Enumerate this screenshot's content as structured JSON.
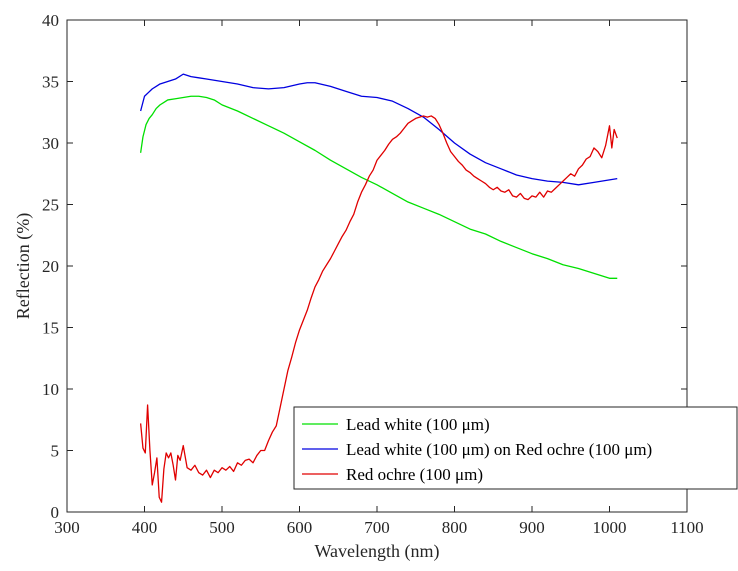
{
  "chart_data": {
    "type": "line",
    "title": "",
    "xlabel": "Wavelength (nm)",
    "ylabel": "Reflection (%)",
    "xlim": [
      300,
      1100
    ],
    "ylim": [
      0,
      40
    ],
    "xticks": [
      300,
      400,
      500,
      600,
      700,
      800,
      900,
      1000,
      1100
    ],
    "yticks": [
      0,
      5,
      10,
      15,
      20,
      25,
      30,
      35,
      40
    ],
    "grid": false,
    "legend_position": "bottom-right",
    "series": [
      {
        "name": "Lead white (100 μm)",
        "color": "#00e000",
        "x": [
          395,
          398,
          402,
          406,
          410,
          415,
          420,
          425,
          430,
          440,
          450,
          460,
          470,
          480,
          490,
          500,
          520,
          540,
          560,
          580,
          600,
          620,
          640,
          660,
          680,
          700,
          720,
          740,
          760,
          780,
          800,
          820,
          840,
          860,
          880,
          900,
          920,
          940,
          960,
          980,
          1000,
          1010
        ],
        "y": [
          29.2,
          30.5,
          31.5,
          32.0,
          32.3,
          32.8,
          33.1,
          33.3,
          33.5,
          33.6,
          33.7,
          33.8,
          33.8,
          33.7,
          33.5,
          33.1,
          32.6,
          32.0,
          31.4,
          30.8,
          30.1,
          29.4,
          28.6,
          27.9,
          27.2,
          26.6,
          25.9,
          25.2,
          24.7,
          24.2,
          23.6,
          23.0,
          22.6,
          22.0,
          21.5,
          21.0,
          20.6,
          20.1,
          19.8,
          19.4,
          19.0,
          19.0
        ]
      },
      {
        "name": "Lead white (100 μm) on Red ochre (100 μm)",
        "color": "#0000e0",
        "x": [
          395,
          400,
          405,
          410,
          415,
          420,
          430,
          440,
          450,
          460,
          470,
          480,
          500,
          520,
          540,
          560,
          580,
          600,
          610,
          620,
          640,
          660,
          680,
          700,
          720,
          740,
          760,
          780,
          800,
          820,
          840,
          860,
          880,
          900,
          920,
          940,
          960,
          980,
          1000,
          1010
        ],
        "y": [
          32.6,
          33.8,
          34.1,
          34.4,
          34.6,
          34.8,
          35.0,
          35.2,
          35.6,
          35.4,
          35.3,
          35.2,
          35.0,
          34.8,
          34.5,
          34.4,
          34.5,
          34.8,
          34.9,
          34.9,
          34.6,
          34.2,
          33.8,
          33.7,
          33.4,
          32.8,
          32.1,
          31.1,
          30.0,
          29.1,
          28.4,
          27.9,
          27.4,
          27.1,
          26.9,
          26.8,
          26.6,
          26.8,
          27.0,
          27.1
        ]
      },
      {
        "name": "Red ochre (100 μm)",
        "color": "#e00000",
        "x": [
          395,
          398,
          401,
          404,
          407,
          410,
          413,
          416,
          419,
          422,
          425,
          428,
          431,
          434,
          437,
          440,
          443,
          446,
          450,
          455,
          460,
          465,
          470,
          475,
          480,
          485,
          490,
          495,
          500,
          505,
          510,
          515,
          520,
          525,
          530,
          535,
          540,
          545,
          550,
          555,
          560,
          565,
          570,
          575,
          580,
          585,
          590,
          595,
          600,
          605,
          610,
          615,
          620,
          625,
          630,
          635,
          640,
          645,
          650,
          655,
          660,
          665,
          670,
          675,
          680,
          685,
          690,
          695,
          700,
          705,
          710,
          715,
          720,
          725,
          730,
          735,
          740,
          745,
          750,
          755,
          760,
          765,
          770,
          775,
          780,
          785,
          790,
          795,
          800,
          805,
          810,
          815,
          820,
          825,
          830,
          835,
          840,
          845,
          850,
          855,
          860,
          865,
          870,
          875,
          880,
          885,
          890,
          895,
          900,
          905,
          910,
          915,
          920,
          925,
          930,
          935,
          940,
          945,
          950,
          955,
          960,
          965,
          970,
          975,
          980,
          985,
          990,
          995,
          1000,
          1003,
          1006,
          1010
        ],
        "y": [
          7.2,
          5.2,
          4.8,
          8.7,
          5.0,
          2.2,
          3.2,
          4.4,
          1.2,
          0.8,
          3.5,
          4.8,
          4.4,
          4.8,
          3.8,
          2.6,
          4.6,
          4.2,
          5.4,
          3.6,
          3.4,
          3.8,
          3.2,
          3.0,
          3.4,
          2.8,
          3.4,
          3.2,
          3.6,
          3.4,
          3.7,
          3.3,
          4.0,
          3.8,
          4.2,
          4.3,
          4.0,
          4.6,
          5.0,
          5.0,
          5.8,
          6.5,
          7.0,
          8.5,
          10.0,
          11.5,
          12.6,
          13.8,
          14.8,
          15.6,
          16.4,
          17.4,
          18.3,
          18.9,
          19.6,
          20.1,
          20.6,
          21.2,
          21.8,
          22.4,
          22.9,
          23.6,
          24.2,
          25.2,
          26.0,
          26.6,
          27.3,
          27.8,
          28.6,
          29.0,
          29.4,
          29.9,
          30.3,
          30.5,
          30.8,
          31.2,
          31.6,
          31.8,
          32.0,
          32.1,
          32.2,
          32.1,
          32.2,
          32.0,
          31.5,
          30.8,
          30.0,
          29.3,
          28.9,
          28.5,
          28.2,
          27.8,
          27.6,
          27.3,
          27.1,
          26.9,
          26.7,
          26.4,
          26.2,
          26.4,
          26.1,
          26.0,
          26.2,
          25.7,
          25.6,
          25.9,
          25.5,
          25.4,
          25.7,
          25.6,
          26.0,
          25.6,
          26.1,
          26.0,
          26.3,
          26.6,
          26.9,
          27.2,
          27.5,
          27.3,
          27.9,
          28.2,
          28.7,
          28.9,
          29.6,
          29.3,
          28.8,
          29.8,
          31.4,
          29.6,
          31.1,
          30.4
        ]
      }
    ]
  }
}
